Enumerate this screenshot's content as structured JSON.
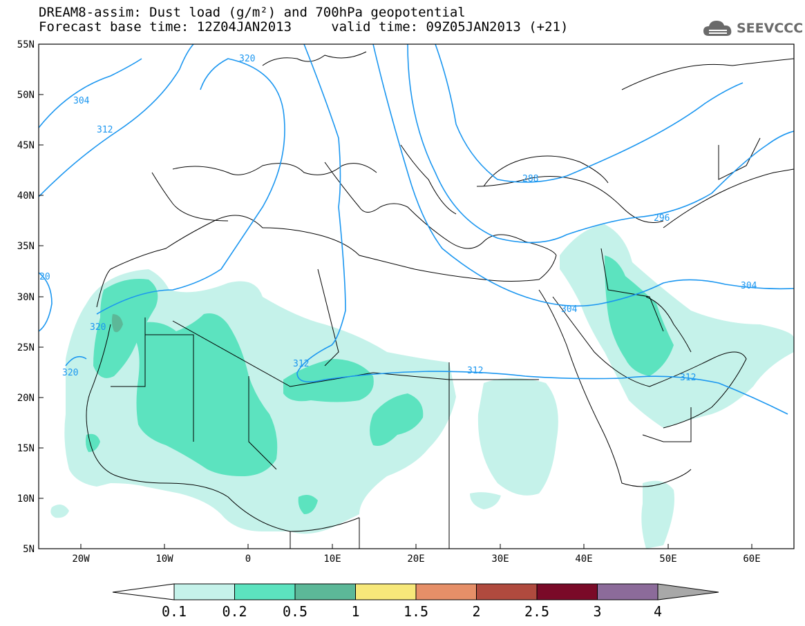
{
  "header": {
    "title_line": "DREAM8-assim: Dust load (g/m²) and 700hPa geopotential",
    "base_time_line": "Forecast base time: 12Z04JAN2013     valid time: 09Z05JAN2013 (+21)"
  },
  "logo": {
    "text": "SEEVCCC",
    "icon": "cloud-icon"
  },
  "map": {
    "region": "North Africa, Middle East, Europe",
    "lat_labels": [
      "55N",
      "50N",
      "45N",
      "40N",
      "35N",
      "30N",
      "25N",
      "20N",
      "15N",
      "10N",
      "5N"
    ],
    "lon_labels": [
      "20W",
      "10W",
      "0",
      "10E",
      "20E",
      "30E",
      "40E",
      "50E",
      "60E"
    ],
    "contour_labels": [
      "320",
      "304",
      "312",
      "288",
      "296",
      "304",
      "304",
      "312",
      "312",
      "312",
      "320",
      "320",
      "20"
    ],
    "colors": {
      "contour": "#1a96f0",
      "border": "#000000",
      "dust_0_1": "#c5f2ea",
      "dust_0_2": "#5ce3bf",
      "dust_0_5": "#5cb898"
    }
  },
  "colorbar": {
    "labels": [
      "0.1",
      "0.2",
      "0.5",
      "1",
      "1.5",
      "2",
      "2.5",
      "3",
      "4"
    ],
    "colors": [
      "#ffffff",
      "#c5f2ea",
      "#5ce3bf",
      "#5cb898",
      "#f7e87a",
      "#e68f68",
      "#b04a3e",
      "#7a0a28",
      "#8c6b9a",
      "#a8a8a8"
    ]
  }
}
